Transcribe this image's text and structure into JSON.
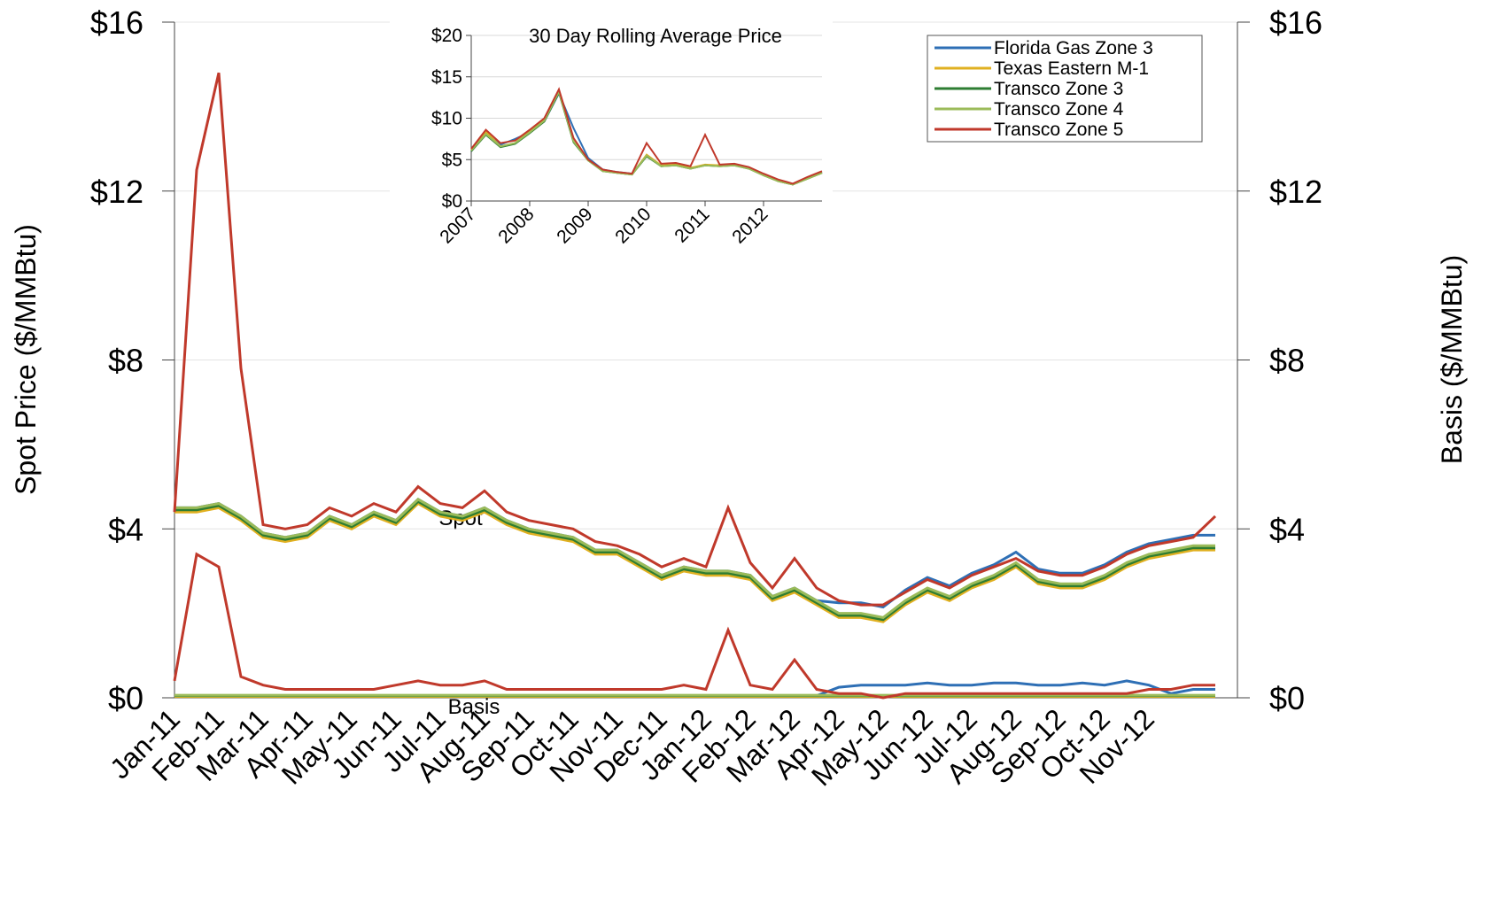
{
  "chart_data": [
    {
      "type": "line",
      "y_label": "Spot Price ($/MMBtu)",
      "y2_label": "Basis ($/MMBtu)",
      "annotations": [
        "Spot",
        "Basis"
      ],
      "categories": [
        "Jan-11",
        null,
        "Feb-11",
        null,
        "Mar-11",
        null,
        "Apr-11",
        null,
        "May-11",
        null,
        "Jun-11",
        null,
        "Jul-11",
        null,
        "Aug-11",
        null,
        "Sep-11",
        null,
        "Oct-11",
        null,
        "Nov-11",
        null,
        "Dec-11",
        null,
        "Jan-12",
        null,
        "Feb-12",
        null,
        "Mar-12",
        null,
        "Apr-12",
        null,
        "May-12",
        null,
        "Jun-12",
        null,
        "Jul-12",
        null,
        "Aug-12",
        null,
        "Sep-12",
        null,
        "Oct-12",
        null,
        "Nov-12",
        null,
        null,
        null
      ],
      "ylim": [
        0,
        16
      ],
      "yticks": [
        {
          "value": 0,
          "label": "$0"
        },
        {
          "value": 4,
          "label": "$4"
        },
        {
          "value": 8,
          "label": "$8"
        },
        {
          "value": 12,
          "label": "$12"
        },
        {
          "value": 16,
          "label": "$16"
        }
      ],
      "y2lim": [
        0,
        16
      ],
      "y2ticks": [
        {
          "value": 0,
          "label": "$0"
        },
        {
          "value": 4,
          "label": "$4"
        },
        {
          "value": 8,
          "label": "$8"
        },
        {
          "value": 12,
          "label": "$12"
        },
        {
          "value": 16,
          "label": "$16"
        }
      ],
      "grid": true,
      "legend": "upper right",
      "series": [
        {
          "name": "Florida Gas Zone 3",
          "color": "#2e6fb5",
          "values": [
            4.5,
            4.5,
            4.6,
            4.3,
            3.9,
            3.8,
            3.9,
            4.3,
            4.1,
            4.4,
            4.2,
            4.7,
            4.4,
            4.3,
            4.5,
            4.2,
            4.0,
            3.9,
            3.8,
            3.5,
            3.5,
            3.2,
            2.9,
            3.1,
            3.0,
            3.0,
            2.9,
            2.4,
            2.6,
            2.3,
            2.25,
            2.25,
            2.15,
            2.55,
            2.85,
            2.65,
            2.95,
            3.15,
            3.45,
            3.05,
            2.95,
            2.95,
            3.15,
            3.45,
            3.65,
            3.75,
            3.85,
            3.85
          ]
        },
        {
          "name": "Texas Eastern M-1",
          "color": "#e0b020",
          "values": [
            4.4,
            4.4,
            4.5,
            4.2,
            3.8,
            3.7,
            3.8,
            4.2,
            4.0,
            4.3,
            4.1,
            4.6,
            4.3,
            4.2,
            4.4,
            4.1,
            3.9,
            3.8,
            3.7,
            3.4,
            3.4,
            3.1,
            2.8,
            3.0,
            2.9,
            2.9,
            2.8,
            2.3,
            2.5,
            2.2,
            1.9,
            1.9,
            1.8,
            2.2,
            2.5,
            2.3,
            2.6,
            2.8,
            3.1,
            2.7,
            2.6,
            2.6,
            2.8,
            3.1,
            3.3,
            3.4,
            3.5,
            3.5
          ]
        },
        {
          "name": "Transco Zone 3",
          "color": "#2e7d32",
          "values": [
            4.45,
            4.45,
            4.55,
            4.25,
            3.85,
            3.75,
            3.85,
            4.25,
            4.05,
            4.35,
            4.15,
            4.65,
            4.35,
            4.25,
            4.45,
            4.15,
            3.95,
            3.85,
            3.75,
            3.45,
            3.45,
            3.15,
            2.85,
            3.05,
            2.95,
            2.95,
            2.85,
            2.35,
            2.55,
            2.25,
            1.95,
            1.95,
            1.85,
            2.25,
            2.55,
            2.35,
            2.65,
            2.85,
            3.15,
            2.75,
            2.65,
            2.65,
            2.85,
            3.15,
            3.35,
            3.45,
            3.55,
            3.55
          ]
        },
        {
          "name": "Transco Zone 4",
          "color": "#9bbb59",
          "values": [
            4.5,
            4.5,
            4.6,
            4.3,
            3.9,
            3.8,
            3.9,
            4.3,
            4.1,
            4.4,
            4.2,
            4.7,
            4.4,
            4.3,
            4.5,
            4.2,
            4.0,
            3.9,
            3.8,
            3.5,
            3.5,
            3.2,
            2.9,
            3.1,
            3.0,
            3.0,
            2.9,
            2.4,
            2.6,
            2.3,
            2.0,
            2.0,
            1.9,
            2.3,
            2.6,
            2.4,
            2.7,
            2.9,
            3.2,
            2.8,
            2.7,
            2.7,
            2.9,
            3.2,
            3.4,
            3.5,
            3.6,
            3.6
          ]
        },
        {
          "name": "Transco Zone 5",
          "color": "#c0392b",
          "values": [
            4.4,
            12.5,
            14.8,
            7.8,
            4.1,
            4.0,
            4.1,
            4.5,
            4.3,
            4.6,
            4.4,
            5.0,
            4.6,
            4.5,
            4.9,
            4.4,
            4.2,
            4.1,
            4.0,
            3.7,
            3.6,
            3.4,
            3.1,
            3.3,
            3.1,
            4.5,
            3.2,
            2.6,
            3.3,
            2.6,
            2.3,
            2.2,
            2.2,
            2.5,
            2.8,
            2.6,
            2.9,
            3.1,
            3.3,
            3.0,
            2.9,
            2.9,
            3.1,
            3.4,
            3.6,
            3.7,
            3.8,
            4.3
          ]
        }
      ],
      "basis_series": [
        {
          "color": "#2e6fb5",
          "axis": "y2",
          "values": [
            0.05,
            0.05,
            0.05,
            0.05,
            0.05,
            0.05,
            0.05,
            0.05,
            0.05,
            0.05,
            0.05,
            0.05,
            0.05,
            0.05,
            0.05,
            0.05,
            0.05,
            0.05,
            0.05,
            0.05,
            0.05,
            0.05,
            0.05,
            0.05,
            0.05,
            0.05,
            0.05,
            0.05,
            0.05,
            0.05,
            0.25,
            0.3,
            0.3,
            0.3,
            0.35,
            0.3,
            0.3,
            0.35,
            0.35,
            0.3,
            0.3,
            0.35,
            0.3,
            0.4,
            0.3,
            0.1,
            0.2,
            0.2
          ]
        },
        {
          "color": "#e0b020",
          "axis": "y2",
          "values": [
            0.03,
            0.03,
            0.03,
            0.03,
            0.03,
            0.03,
            0.03,
            0.03,
            0.03,
            0.03,
            0.03,
            0.03,
            0.03,
            0.03,
            0.03,
            0.03,
            0.03,
            0.03,
            0.03,
            0.03,
            0.03,
            0.03,
            0.03,
            0.03,
            0.03,
            0.03,
            0.03,
            0.03,
            0.03,
            0.03,
            0.03,
            0.03,
            0.03,
            0.03,
            0.03,
            0.03,
            0.03,
            0.03,
            0.03,
            0.03,
            0.03,
            0.03,
            0.03,
            0.03,
            0.03,
            0.03,
            0.03,
            0.03
          ]
        },
        {
          "color": "#2e7d32",
          "axis": "y2",
          "values": [
            0.05,
            0.05,
            0.05,
            0.05,
            0.05,
            0.05,
            0.05,
            0.05,
            0.05,
            0.05,
            0.05,
            0.05,
            0.05,
            0.05,
            0.05,
            0.05,
            0.05,
            0.05,
            0.05,
            0.05,
            0.05,
            0.05,
            0.05,
            0.05,
            0.05,
            0.05,
            0.05,
            0.05,
            0.05,
            0.05,
            0.05,
            0.05,
            0.05,
            0.05,
            0.05,
            0.05,
            0.05,
            0.05,
            0.05,
            0.05,
            0.05,
            0.05,
            0.05,
            0.05,
            0.05,
            0.05,
            0.05,
            0.05
          ]
        },
        {
          "color": "#9bbb59",
          "axis": "y2",
          "values": [
            0.06,
            0.06,
            0.06,
            0.06,
            0.06,
            0.06,
            0.06,
            0.06,
            0.06,
            0.06,
            0.06,
            0.06,
            0.06,
            0.06,
            0.06,
            0.06,
            0.06,
            0.06,
            0.06,
            0.06,
            0.06,
            0.06,
            0.06,
            0.06,
            0.06,
            0.06,
            0.06,
            0.06,
            0.06,
            0.06,
            0.06,
            0.06,
            0.06,
            0.06,
            0.06,
            0.06,
            0.06,
            0.06,
            0.06,
            0.06,
            0.06,
            0.06,
            0.06,
            0.06,
            0.06,
            0.06,
            0.06,
            0.06
          ]
        },
        {
          "color": "#c0392b",
          "axis": "y2",
          "values": [
            0.4,
            3.4,
            3.1,
            0.5,
            0.3,
            0.2,
            0.2,
            0.2,
            0.2,
            0.2,
            0.3,
            0.4,
            0.3,
            0.3,
            0.4,
            0.2,
            0.2,
            0.2,
            0.2,
            0.2,
            0.2,
            0.2,
            0.2,
            0.3,
            0.2,
            1.6,
            0.3,
            0.2,
            0.9,
            0.2,
            0.1,
            0.1,
            0.0,
            0.1,
            0.1,
            0.1,
            0.1,
            0.1,
            0.1,
            0.1,
            0.1,
            0.1,
            0.1,
            0.1,
            0.2,
            0.2,
            0.3,
            0.3
          ]
        }
      ]
    },
    {
      "type": "line",
      "title": "30 Day Rolling Average Price",
      "x": [
        2007,
        2007.25,
        2007.5,
        2007.75,
        2008,
        2008.25,
        2008.5,
        2008.75,
        2009,
        2009.25,
        2009.5,
        2009.75,
        2010,
        2010.25,
        2010.5,
        2010.75,
        2011,
        2011.25,
        2011.5,
        2011.75,
        2012,
        2012.25,
        2012.5,
        2012.75,
        2013
      ],
      "xlim": [
        2007,
        2013
      ],
      "xticks": [
        2007,
        2008,
        2009,
        2010,
        2011,
        2012
      ],
      "ylim": [
        0,
        20
      ],
      "yticks": [
        {
          "value": 0,
          "label": "$0"
        },
        {
          "value": 5,
          "label": "$5"
        },
        {
          "value": 10,
          "label": "$10"
        },
        {
          "value": 15,
          "label": "$15"
        },
        {
          "value": 20,
          "label": "$20"
        }
      ],
      "grid": true,
      "series": [
        {
          "color": "#2e6fb5",
          "values": [
            6.0,
            8.2,
            6.8,
            7.5,
            8.3,
            9.6,
            13.0,
            8.8,
            5.2,
            3.8,
            3.5,
            3.3,
            5.5,
            4.2,
            4.4,
            4.0,
            4.3,
            4.3,
            4.4,
            4.0,
            3.2,
            2.5,
            2.0,
            2.8,
            3.5
          ]
        },
        {
          "color": "#e0b020",
          "values": [
            6.2,
            8.4,
            6.6,
            7.0,
            8.5,
            9.8,
            13.3,
            7.2,
            5.0,
            3.7,
            3.4,
            3.2,
            5.6,
            4.3,
            4.4,
            4.0,
            4.4,
            4.3,
            4.4,
            4.0,
            3.1,
            2.4,
            2.0,
            2.7,
            3.4
          ]
        },
        {
          "color": "#2e7d32",
          "values": [
            6.0,
            8.0,
            6.5,
            6.9,
            8.2,
            9.6,
            13.1,
            7.1,
            4.9,
            3.6,
            3.4,
            3.2,
            5.4,
            4.2,
            4.3,
            3.9,
            4.3,
            4.2,
            4.3,
            3.9,
            3.1,
            2.4,
            2.0,
            2.7,
            3.4
          ]
        },
        {
          "color": "#9bbb59",
          "values": [
            6.1,
            8.1,
            6.6,
            7.0,
            8.3,
            9.7,
            13.2,
            7.2,
            4.9,
            3.6,
            3.4,
            3.2,
            5.5,
            4.2,
            4.3,
            3.9,
            4.3,
            4.2,
            4.3,
            3.9,
            3.1,
            2.4,
            2.0,
            2.7,
            3.4
          ]
        },
        {
          "color": "#c0392b",
          "values": [
            6.3,
            8.6,
            7.0,
            7.3,
            8.6,
            10.0,
            13.5,
            7.6,
            5.0,
            3.8,
            3.5,
            3.3,
            7.0,
            4.5,
            4.6,
            4.2,
            8.0,
            4.4,
            4.5,
            4.1,
            3.3,
            2.6,
            2.1,
            2.9,
            3.6
          ]
        }
      ]
    }
  ]
}
